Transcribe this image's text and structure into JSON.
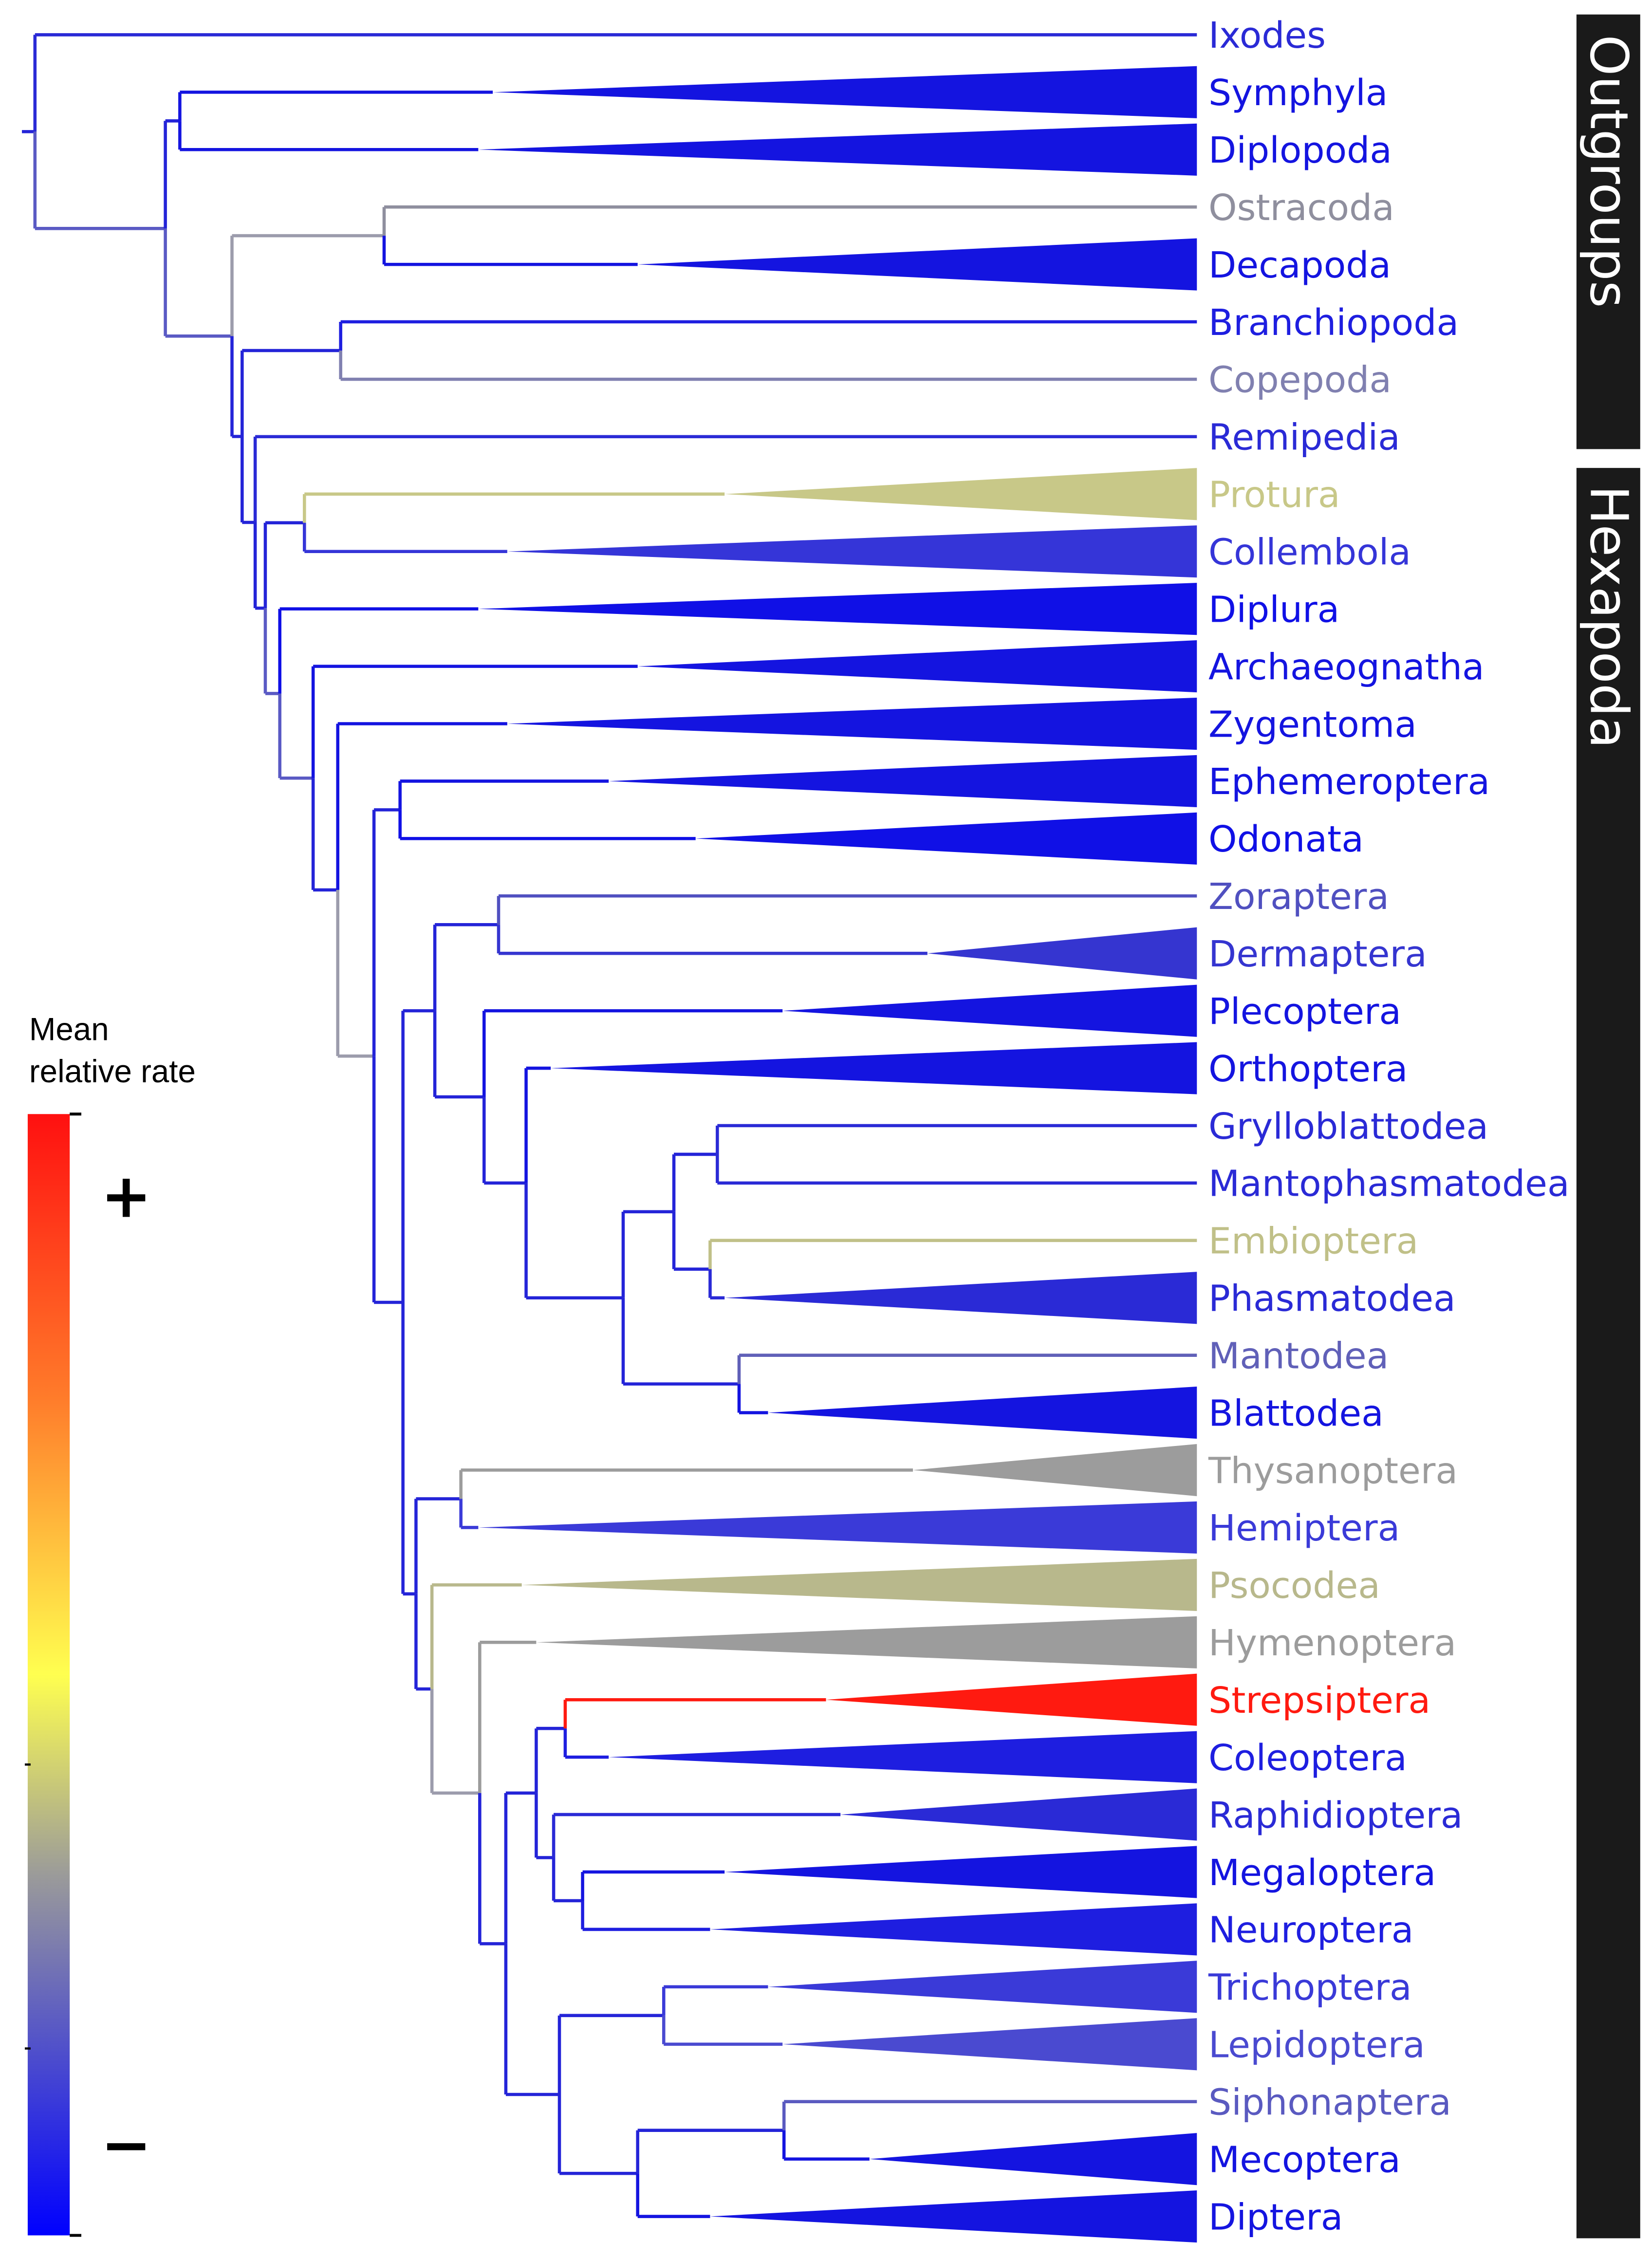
{
  "groups": [
    {
      "label": "Outgroups"
    },
    {
      "label": "Hexapoda"
    }
  ],
  "legend": {
    "title_line1": "Mean",
    "title_line2": "relative rate",
    "plus": "+",
    "minus": "−",
    "gradient_colors": [
      "#ff1010",
      "#ff7a2a",
      "#ffff50",
      "#9a9a9a",
      "#0000ff"
    ]
  },
  "taxa": [
    {
      "name": "Ixodes",
      "color": "#2a2ad6"
    },
    {
      "name": "Symphyla",
      "color": "#1414e0"
    },
    {
      "name": "Diplopoda",
      "color": "#1414e0"
    },
    {
      "name": "Ostracoda",
      "color": "#8f8f9e"
    },
    {
      "name": "Decapoda",
      "color": "#1414e0"
    },
    {
      "name": "Branchiopoda",
      "color": "#1e1ee0"
    },
    {
      "name": "Copepoda",
      "color": "#8080b0"
    },
    {
      "name": "Remipedia",
      "color": "#2a2ad6"
    },
    {
      "name": "Protura",
      "color": "#c8c888"
    },
    {
      "name": "Collembola",
      "color": "#3535d8"
    },
    {
      "name": "Diplura",
      "color": "#1010e6"
    },
    {
      "name": "Archaeognatha",
      "color": "#1414e0"
    },
    {
      "name": "Zygentoma",
      "color": "#1414e0"
    },
    {
      "name": "Ephemeroptera",
      "color": "#1414e0"
    },
    {
      "name": "Odonata",
      "color": "#1010e6"
    },
    {
      "name": "Zoraptera",
      "color": "#5050c0"
    },
    {
      "name": "Dermaptera",
      "color": "#3535d0"
    },
    {
      "name": "Plecoptera",
      "color": "#1414e0"
    },
    {
      "name": "Orthoptera",
      "color": "#1414e0"
    },
    {
      "name": "Grylloblattodea",
      "color": "#2a2ad6"
    },
    {
      "name": "Mantophasmatodea",
      "color": "#2a2ad6"
    },
    {
      "name": "Embioptera",
      "color": "#c0c088"
    },
    {
      "name": "Phasmatodea",
      "color": "#2a2ad6"
    },
    {
      "name": "Mantodea",
      "color": "#6060b8"
    },
    {
      "name": "Blattodea",
      "color": "#1414e0"
    },
    {
      "name": "Thysanoptera",
      "color": "#9c9c9c"
    },
    {
      "name": "Hemiptera",
      "color": "#3a3ad8"
    },
    {
      "name": "Psocodea",
      "color": "#b8b88c"
    },
    {
      "name": "Hymenoptera",
      "color": "#9c9c9c"
    },
    {
      "name": "Strepsiptera",
      "color": "#ff1a10"
    },
    {
      "name": "Coleoptera",
      "color": "#1e1ee0"
    },
    {
      "name": "Raphidioptera",
      "color": "#2a2ad6"
    },
    {
      "name": "Megaloptera",
      "color": "#1414e0"
    },
    {
      "name": "Neuroptera",
      "color": "#1e1ee0"
    },
    {
      "name": "Trichoptera",
      "color": "#3a3ad8"
    },
    {
      "name": "Lepidoptera",
      "color": "#4a4ad0"
    },
    {
      "name": "Siphonaptera",
      "color": "#5a5ac0"
    },
    {
      "name": "Mecoptera",
      "color": "#1414e0"
    },
    {
      "name": "Diptera",
      "color": "#1414e0"
    }
  ]
}
